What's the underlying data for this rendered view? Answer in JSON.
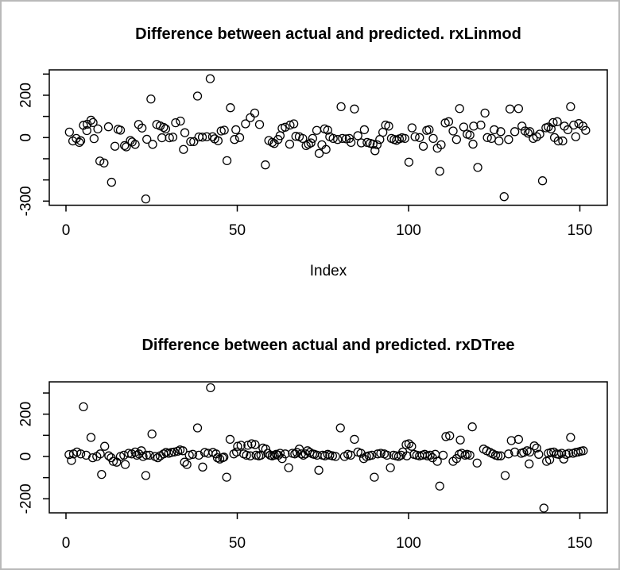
{
  "window": {
    "background_color": "#ffffff",
    "frame_color": "#b9b9b9",
    "point_color": "#000000"
  },
  "chart_data": [
    {
      "type": "scatter",
      "title": "Difference between actual and predicted. rxLinmod",
      "xlabel": "Index",
      "ylabel": "",
      "marker": "open-circle",
      "grid": false,
      "xlim": [
        -5,
        158
      ],
      "ylim": [
        -319,
        320
      ],
      "x_ticks": [
        0,
        50,
        100,
        150
      ],
      "y_ticks": [
        300,
        200,
        100,
        0,
        -100,
        -200,
        -300
      ],
      "y_tick_labels_shown": [
        "200",
        "0",
        "-300"
      ],
      "points": [
        [
          1,
          26
        ],
        [
          2,
          -16
        ],
        [
          3,
          -4
        ],
        [
          3.9,
          -23
        ],
        [
          4.3,
          -15
        ],
        [
          5.1,
          58
        ],
        [
          6.1,
          33
        ],
        [
          6.2,
          63
        ],
        [
          7.3,
          82
        ],
        [
          7.9,
          71
        ],
        [
          8.2,
          -5
        ],
        [
          9.3,
          41
        ],
        [
          9.9,
          -111
        ],
        [
          11.1,
          -120
        ],
        [
          12.4,
          51
        ],
        [
          13.3,
          -211
        ],
        [
          14.3,
          -41
        ],
        [
          15.2,
          39
        ],
        [
          15.9,
          35
        ],
        [
          17.1,
          -38
        ],
        [
          17.6,
          -44
        ],
        [
          18.8,
          -14
        ],
        [
          19.3,
          -21
        ],
        [
          20.2,
          -32
        ],
        [
          21.2,
          62
        ],
        [
          22.2,
          45
        ],
        [
          23.3,
          -290
        ],
        [
          23.6,
          -8
        ],
        [
          24.8,
          182
        ],
        [
          25.3,
          -32
        ],
        [
          26.5,
          62
        ],
        [
          27.5,
          55
        ],
        [
          28,
          -1
        ],
        [
          28.5,
          48
        ],
        [
          29.1,
          41
        ],
        [
          30.2,
          -1
        ],
        [
          31.2,
          2
        ],
        [
          32,
          70
        ],
        [
          33.4,
          78
        ],
        [
          34.3,
          -56
        ],
        [
          34.7,
          23
        ],
        [
          36.4,
          -19
        ],
        [
          37.3,
          -19
        ],
        [
          38.4,
          196
        ],
        [
          38.8,
          3
        ],
        [
          39.8,
          2
        ],
        [
          41.1,
          4
        ],
        [
          42.1,
          278
        ],
        [
          42.8,
          4
        ],
        [
          43.4,
          -6
        ],
        [
          44.4,
          -15
        ],
        [
          45.3,
          31
        ],
        [
          46.2,
          35
        ],
        [
          47,
          -109
        ],
        [
          48,
          141
        ],
        [
          49.2,
          -9
        ],
        [
          49.6,
          37
        ],
        [
          50.7,
          0
        ],
        [
          52.4,
          65
        ],
        [
          53.8,
          94
        ],
        [
          55.1,
          116
        ],
        [
          56.5,
          62
        ],
        [
          58.2,
          -129
        ],
        [
          59.2,
          -14
        ],
        [
          60.2,
          -23
        ],
        [
          60.8,
          -28
        ],
        [
          61.9,
          -9
        ],
        [
          62.5,
          9
        ],
        [
          63.1,
          44
        ],
        [
          64,
          49
        ],
        [
          65.3,
          -31
        ],
        [
          65.4,
          59
        ],
        [
          66.5,
          65
        ],
        [
          67.1,
          6
        ],
        [
          68.1,
          4
        ],
        [
          69.1,
          -4
        ],
        [
          70.1,
          -38
        ],
        [
          70.8,
          -31
        ],
        [
          71.5,
          -25
        ],
        [
          72,
          -4
        ],
        [
          73.2,
          34
        ],
        [
          73.9,
          -75
        ],
        [
          74.7,
          -34
        ],
        [
          75.5,
          41
        ],
        [
          75.9,
          -56
        ],
        [
          76.4,
          35
        ],
        [
          77,
          4
        ],
        [
          78,
          -4
        ],
        [
          79.3,
          -9
        ],
        [
          80.3,
          146
        ],
        [
          80.7,
          -4
        ],
        [
          81.8,
          -6
        ],
        [
          82.7,
          -4
        ],
        [
          83.2,
          -23
        ],
        [
          84.2,
          135
        ],
        [
          85.2,
          9
        ],
        [
          86.2,
          -25
        ],
        [
          87.1,
          37
        ],
        [
          87.9,
          -23
        ],
        [
          88.8,
          -27
        ],
        [
          89.6,
          -31
        ],
        [
          90.2,
          -62
        ],
        [
          90.8,
          -34
        ],
        [
          91.6,
          -9
        ],
        [
          92.5,
          25
        ],
        [
          93.3,
          59
        ],
        [
          94.2,
          54
        ],
        [
          95,
          -4
        ],
        [
          95.8,
          -9
        ],
        [
          96.5,
          -13
        ],
        [
          97.3,
          -6
        ],
        [
          98.1,
          -1
        ],
        [
          98.9,
          -4
        ],
        [
          100.1,
          -116
        ],
        [
          101,
          46
        ],
        [
          101.9,
          4
        ],
        [
          103.2,
          0
        ],
        [
          104.3,
          -41
        ],
        [
          105.3,
          34
        ],
        [
          106,
          37
        ],
        [
          107.2,
          -4
        ],
        [
          108.4,
          -50
        ],
        [
          109.1,
          -159
        ],
        [
          109.5,
          -34
        ],
        [
          110.7,
          69
        ],
        [
          111.7,
          75
        ],
        [
          113,
          31
        ],
        [
          114,
          -9
        ],
        [
          114.9,
          137
        ],
        [
          116.1,
          50
        ],
        [
          117.1,
          16
        ],
        [
          117.9,
          12
        ],
        [
          118.8,
          -31
        ],
        [
          119,
          54
        ],
        [
          120.2,
          -141
        ],
        [
          121.1,
          59
        ],
        [
          122.3,
          116
        ],
        [
          123,
          0
        ],
        [
          124.2,
          -4
        ],
        [
          125,
          37
        ],
        [
          126.4,
          -16
        ],
        [
          126.9,
          28
        ],
        [
          127.9,
          -279
        ],
        [
          129.2,
          -9
        ],
        [
          129.6,
          135
        ],
        [
          131,
          28
        ],
        [
          132.1,
          137
        ],
        [
          133.1,
          54
        ],
        [
          134,
          31
        ],
        [
          134.9,
          21
        ],
        [
          135.4,
          28
        ],
        [
          136.4,
          -4
        ],
        [
          137.4,
          4
        ],
        [
          138.3,
          16
        ],
        [
          139.1,
          -204
        ],
        [
          140.1,
          46
        ],
        [
          140.8,
          50
        ],
        [
          141.6,
          41
        ],
        [
          142.2,
          71
        ],
        [
          142.6,
          0
        ],
        [
          143.4,
          75
        ],
        [
          143.7,
          -16
        ],
        [
          145,
          -16
        ],
        [
          145.5,
          54
        ],
        [
          146.5,
          37
        ],
        [
          147.3,
          146
        ],
        [
          148.2,
          59
        ],
        [
          148.8,
          4
        ],
        [
          149.7,
          66
        ],
        [
          150.9,
          54
        ],
        [
          151.7,
          34
        ]
      ]
    },
    {
      "type": "scatter",
      "title": "Difference between actual and predicted. rxDTree",
      "xlabel": "",
      "ylabel": "",
      "marker": "open-circle",
      "grid": false,
      "xlim": [
        -5,
        158
      ],
      "ylim": [
        -266,
        353
      ],
      "x_ticks": [
        0,
        50,
        100,
        150
      ],
      "y_ticks": [
        300,
        200,
        100,
        0,
        -100,
        -200
      ],
      "y_tick_labels_shown": [
        "200",
        "0",
        "-200"
      ],
      "points": [
        [
          0.9,
          9
        ],
        [
          1.6,
          -19
        ],
        [
          2.2,
          12
        ],
        [
          3.2,
          21
        ],
        [
          4.3,
          12
        ],
        [
          5.1,
          235
        ],
        [
          5.9,
          6
        ],
        [
          7.3,
          90
        ],
        [
          7.8,
          -6
        ],
        [
          9,
          0
        ],
        [
          10,
          12
        ],
        [
          10.4,
          -85
        ],
        [
          11.3,
          48
        ],
        [
          12.5,
          3
        ],
        [
          13.2,
          -6
        ],
        [
          13.8,
          -23
        ],
        [
          14.8,
          -27
        ],
        [
          15.9,
          0
        ],
        [
          16.9,
          6
        ],
        [
          17.3,
          -38
        ],
        [
          18.3,
          15
        ],
        [
          19.2,
          12
        ],
        [
          20.2,
          21
        ],
        [
          20.7,
          6
        ],
        [
          21.3,
          12
        ],
        [
          22,
          27
        ],
        [
          22.5,
          0
        ],
        [
          23.3,
          -90
        ],
        [
          23.5,
          6
        ],
        [
          24.4,
          6
        ],
        [
          25.1,
          106
        ],
        [
          26,
          0
        ],
        [
          26.8,
          -6
        ],
        [
          27.5,
          3
        ],
        [
          28.5,
          12
        ],
        [
          29.2,
          19
        ],
        [
          30,
          15
        ],
        [
          30.8,
          19
        ],
        [
          31.6,
          21
        ],
        [
          32.6,
          25
        ],
        [
          33.3,
          31
        ],
        [
          34.1,
          27
        ],
        [
          34.6,
          -27
        ],
        [
          35.3,
          -38
        ],
        [
          36,
          6
        ],
        [
          37,
          10
        ],
        [
          38.4,
          135
        ],
        [
          38.8,
          6
        ],
        [
          39.9,
          -50
        ],
        [
          40.5,
          19
        ],
        [
          41.5,
          15
        ],
        [
          42.2,
          325
        ],
        [
          42.9,
          19
        ],
        [
          43.8,
          12
        ],
        [
          44.2,
          -6
        ],
        [
          44.9,
          -12
        ],
        [
          45.7,
          -6
        ],
        [
          46.1,
          -3
        ],
        [
          46.9,
          -98
        ],
        [
          47.9,
          81
        ],
        [
          49,
          12
        ],
        [
          49.8,
          21
        ],
        [
          50.1,
          48
        ],
        [
          51.1,
          53
        ],
        [
          51.9,
          12
        ],
        [
          52.7,
          6
        ],
        [
          53.1,
          53
        ],
        [
          53.8,
          3
        ],
        [
          54.2,
          60
        ],
        [
          55.2,
          56
        ],
        [
          55.5,
          6
        ],
        [
          56.3,
          3
        ],
        [
          56.9,
          6
        ],
        [
          57.5,
          40
        ],
        [
          58.3,
          35
        ],
        [
          58.9,
          15
        ],
        [
          59.6,
          6
        ],
        [
          60.2,
          3
        ],
        [
          60.8,
          6
        ],
        [
          61.4,
          10
        ],
        [
          62,
          6
        ],
        [
          62.5,
          15
        ],
        [
          63.1,
          -10
        ],
        [
          64,
          12
        ],
        [
          65,
          -53
        ],
        [
          66.1,
          15
        ],
        [
          66.8,
          12
        ],
        [
          67.4,
          19
        ],
        [
          68.1,
          35
        ],
        [
          68.7,
          12
        ],
        [
          69.3,
          6
        ],
        [
          69.9,
          12
        ],
        [
          70.5,
          27
        ],
        [
          71.2,
          19
        ],
        [
          72,
          12
        ],
        [
          72.5,
          10
        ],
        [
          73.3,
          6
        ],
        [
          73.8,
          -65
        ],
        [
          74.9,
          6
        ],
        [
          75.6,
          3
        ],
        [
          76.4,
          10
        ],
        [
          77,
          6
        ],
        [
          77.8,
          3
        ],
        [
          78.7,
          0
        ],
        [
          80.1,
          135
        ],
        [
          81.3,
          0
        ],
        [
          82.3,
          10
        ],
        [
          83.1,
          6
        ],
        [
          84.2,
          81
        ],
        [
          85.2,
          21
        ],
        [
          86.1,
          15
        ],
        [
          86.9,
          -10
        ],
        [
          87.7,
          0
        ],
        [
          88.5,
          3
        ],
        [
          89.3,
          6
        ],
        [
          90,
          -98
        ],
        [
          91,
          12
        ],
        [
          91.9,
          15
        ],
        [
          92.9,
          12
        ],
        [
          93.7,
          6
        ],
        [
          94.7,
          -53
        ],
        [
          95.6,
          6
        ],
        [
          96.4,
          3
        ],
        [
          97.1,
          0
        ],
        [
          97.8,
          6
        ],
        [
          98.3,
          21
        ],
        [
          99.3,
          56
        ],
        [
          99.5,
          3
        ],
        [
          100.1,
          60
        ],
        [
          100.9,
          48
        ],
        [
          101.6,
          10
        ],
        [
          102.4,
          6
        ],
        [
          103.2,
          3
        ],
        [
          104,
          6
        ],
        [
          104.7,
          10
        ],
        [
          105.5,
          3
        ],
        [
          106.3,
          6
        ],
        [
          107,
          -6
        ],
        [
          107.8,
          10
        ],
        [
          108.4,
          -23
        ],
        [
          109.1,
          -140
        ],
        [
          110.1,
          6
        ],
        [
          110.9,
          94
        ],
        [
          112,
          98
        ],
        [
          113,
          -23
        ],
        [
          114,
          -10
        ],
        [
          114.8,
          10
        ],
        [
          115.1,
          78
        ],
        [
          115.5,
          15
        ],
        [
          116.5,
          6
        ],
        [
          117.1,
          10
        ],
        [
          117.9,
          6
        ],
        [
          118.6,
          140
        ],
        [
          120,
          -31
        ],
        [
          121.9,
          35
        ],
        [
          122.8,
          27
        ],
        [
          123.8,
          19
        ],
        [
          124.6,
          12
        ],
        [
          125.4,
          6
        ],
        [
          126.1,
          3
        ],
        [
          126.9,
          3
        ],
        [
          128.2,
          -90
        ],
        [
          129.2,
          12
        ],
        [
          130,
          75
        ],
        [
          131,
          21
        ],
        [
          132.1,
          81
        ],
        [
          132.9,
          15
        ],
        [
          133.6,
          19
        ],
        [
          134.6,
          27
        ],
        [
          135.2,
          -35
        ],
        [
          135.4,
          21
        ],
        [
          136.7,
          50
        ],
        [
          137.4,
          40
        ],
        [
          138,
          10
        ],
        [
          139.5,
          -244
        ],
        [
          140.3,
          -23
        ],
        [
          140.8,
          15
        ],
        [
          141.2,
          -15
        ],
        [
          141.6,
          19
        ],
        [
          142.4,
          21
        ],
        [
          143.2,
          12
        ],
        [
          143.9,
          10
        ],
        [
          144.7,
          15
        ],
        [
          145.3,
          -12
        ],
        [
          146,
          10
        ],
        [
          146.8,
          15
        ],
        [
          147.3,
          90
        ],
        [
          148,
          15
        ],
        [
          148.8,
          19
        ],
        [
          149.5,
          21
        ],
        [
          150.3,
          25
        ],
        [
          151,
          27
        ]
      ]
    }
  ]
}
